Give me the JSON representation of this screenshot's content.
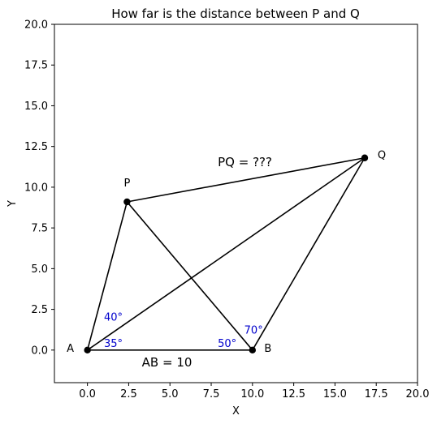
{
  "chart_data": {
    "type": "diagram",
    "title": "How far is the distance between P and Q",
    "xlabel": "X",
    "ylabel": "Y",
    "xlim": [
      -2,
      20
    ],
    "ylim": [
      -2,
      20
    ],
    "xticks": [
      0,
      2.5,
      5,
      7.5,
      10,
      12.5,
      15,
      17.5,
      20
    ],
    "xtick_labels": [
      "0.0",
      "2.5",
      "5.0",
      "7.5",
      "10.0",
      "12.5",
      "15.0",
      "17.5",
      "20.0"
    ],
    "yticks": [
      0,
      2.5,
      5,
      7.5,
      10,
      12.5,
      15,
      17.5,
      20
    ],
    "ytick_labels": [
      "0.0",
      "2.5",
      "5.0",
      "7.5",
      "10.0",
      "12.5",
      "15.0",
      "17.5",
      "20.0"
    ],
    "points": [
      {
        "label": "A",
        "x": 0,
        "y": 0
      },
      {
        "label": "B",
        "x": 10,
        "y": 0
      },
      {
        "label": "P",
        "x": 2.4,
        "y": 9.1
      },
      {
        "label": "Q",
        "x": 16.8,
        "y": 11.8
      }
    ],
    "segments": [
      [
        "A",
        "B"
      ],
      [
        "A",
        "P"
      ],
      [
        "A",
        "Q"
      ],
      [
        "B",
        "P"
      ],
      [
        "B",
        "Q"
      ],
      [
        "P",
        "Q"
      ]
    ],
    "angle_labels": [
      {
        "text": "40°",
        "x": 1.0,
        "y": 1.8
      },
      {
        "text": "35°",
        "x": 1.0,
        "y": 0.2
      },
      {
        "text": "50°",
        "x": 7.9,
        "y": 0.2
      },
      {
        "text": "70°",
        "x": 9.5,
        "y": 1.0
      }
    ],
    "annotations": [
      {
        "text": "PQ = ???",
        "x": 7.9,
        "y": 11.3
      },
      {
        "text": "AB = 10",
        "x": 3.3,
        "y": -1.0
      }
    ]
  }
}
